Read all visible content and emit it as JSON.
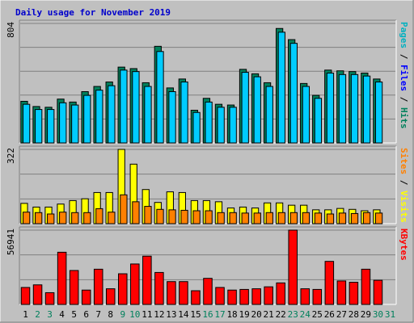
{
  "chart_data": {
    "type": "bar",
    "title": "Daily usage for November 2019",
    "colors": {
      "background": "#c0c0c0",
      "plot": "#c0c0c0",
      "grid": "#808080",
      "hits": "#00805c",
      "files": "#00ccff",
      "pages": "#00b0c0",
      "sites": "#ff8000",
      "visits": "#ffff00",
      "kbytes": "#ff0000",
      "weekday_label": "#000000",
      "weekend_label": "#00805c",
      "title_color": "#0000cc"
    },
    "categories": [
      "1",
      "2",
      "3",
      "4",
      "5",
      "6",
      "7",
      "8",
      "9",
      "10",
      "11",
      "12",
      "13",
      "14",
      "15",
      "16",
      "17",
      "18",
      "19",
      "20",
      "21",
      "22",
      "23",
      "24",
      "25",
      "26",
      "27",
      "28",
      "29",
      "30",
      "31"
    ],
    "weekend_days": [
      "2",
      "3",
      "9",
      "10",
      "16",
      "17",
      "23",
      "24",
      "30",
      "31"
    ],
    "panels": [
      {
        "name": "top",
        "ymax_label": "804",
        "ymax": 804,
        "legend": [
          {
            "text": "Pages",
            "color": "#00b0c0"
          },
          {
            "text": " / ",
            "color": "#000000"
          },
          {
            "text": "Files",
            "color": "#0000ff"
          },
          {
            "text": " / ",
            "color": "#000000"
          },
          {
            "text": "Hits",
            "color": "#00805c"
          }
        ],
        "series": [
          {
            "name": "Hits",
            "values": [
              280,
              245,
              240,
              295,
              275,
              345,
              380,
              410,
              510,
              500,
              405,
              650,
              370,
              430,
              220,
              300,
              260,
              255,
              495,
              465,
              405,
              770,
              695,
              400,
              320,
              490,
              485,
              480,
              470,
              430
            ]
          },
          {
            "name": "Files",
            "values": [
              260,
              225,
              225,
              270,
              255,
              320,
              355,
              385,
              490,
              480,
              380,
              615,
              345,
              410,
              205,
              275,
              240,
              240,
              475,
              445,
              380,
              745,
              670,
              380,
              300,
              470,
              460,
              460,
              450,
              410
            ]
          }
        ]
      },
      {
        "name": "middle",
        "ymax_label": "322",
        "ymax": 322,
        "legend": [
          {
            "text": "Sites",
            "color": "#ff8000"
          },
          {
            "text": " / ",
            "color": "#000000"
          },
          {
            "text": "Visits",
            "color": "#ffff00"
          }
        ],
        "series": [
          {
            "name": "Visits",
            "values": [
              88,
              72,
              72,
              85,
              100,
              108,
              135,
              135,
              322,
              258,
              148,
              92,
              138,
              135,
              100,
              100,
              95,
              68,
              72,
              68,
              90,
              90,
              80,
              80,
              60,
              60,
              66,
              62,
              56,
              60
            ]
          },
          {
            "name": "Sites",
            "values": [
              50,
              48,
              42,
              50,
              48,
              48,
              65,
              50,
              125,
              95,
              75,
              62,
              60,
              58,
              56,
              56,
              48,
              48,
              46,
              46,
              48,
              48,
              48,
              48,
              46,
              42,
              46,
              44,
              48,
              46
            ]
          }
        ]
      },
      {
        "name": "bottom",
        "ymax_label": "56941",
        "ymax": 56941,
        "legend": [
          {
            "text": "KBytes",
            "color": "#ff0000"
          }
        ],
        "series": [
          {
            "name": "KBytes",
            "values": [
              13000,
              15000,
              9000,
              40000,
              26000,
              11000,
              27000,
              12000,
              23500,
              31000,
              37000,
              24500,
              17500,
              17500,
              10500,
              20000,
              13000,
              11000,
              11500,
              12000,
              13500,
              16500,
              56941,
              12000,
              11500,
              33000,
              18000,
              17000,
              27000,
              18500
            ]
          }
        ]
      }
    ]
  }
}
